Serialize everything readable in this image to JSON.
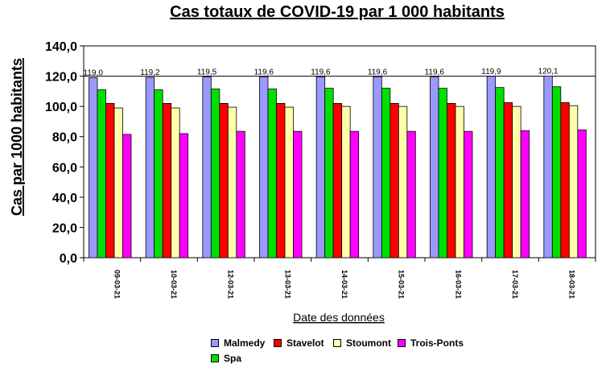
{
  "chart_data": {
    "type": "bar",
    "title": "Cas totaux de COVID-19 par 1 000 habitants",
    "xlabel": "Date des données",
    "ylabel": "Cas par 1000 habitants",
    "ylim": [
      0,
      140
    ],
    "yticks": [
      "0,0",
      "20,0",
      "40,0",
      "60,0",
      "80,0",
      "100,0",
      "120,0",
      "140,0"
    ],
    "reference_line": 120,
    "categories": [
      "09-03-21",
      "10-03-21",
      "12-03-21",
      "13-03-21",
      "14-03-21",
      "15-03-21",
      "16-03-21",
      "17-03-21",
      "18-03-21"
    ],
    "data_labels": [
      "119,0",
      "119,2",
      "119,5",
      "119,6",
      "119,6",
      "119,6",
      "119,6",
      "119,9",
      "120,1"
    ],
    "grid": false,
    "legend_position": "bottom",
    "series": [
      {
        "name": "Malmedy",
        "color": "#9999ff",
        "values": [
          119.0,
          119.2,
          119.5,
          119.6,
          119.6,
          119.6,
          119.6,
          119.9,
          120.1
        ]
      },
      {
        "name": "Spa",
        "color": "#00e000",
        "values": [
          111.0,
          111.0,
          111.5,
          111.5,
          112.0,
          112.0,
          112.0,
          112.5,
          113.0
        ]
      },
      {
        "name": "Stavelot",
        "color": "#ff0000",
        "values": [
          102.0,
          102.0,
          102.0,
          102.0,
          102.0,
          102.0,
          102.0,
          102.5,
          102.5
        ]
      },
      {
        "name": "Stoumont",
        "color": "#ffffaa",
        "values": [
          99.0,
          99.0,
          99.5,
          99.5,
          100.0,
          100.0,
          100.0,
          100.0,
          100.5
        ]
      },
      {
        "name": "Trois-Ponts",
        "color": "#ff00ff",
        "values": [
          81.5,
          82.0,
          83.5,
          83.5,
          83.5,
          83.5,
          83.5,
          84.0,
          84.5
        ]
      }
    ]
  }
}
